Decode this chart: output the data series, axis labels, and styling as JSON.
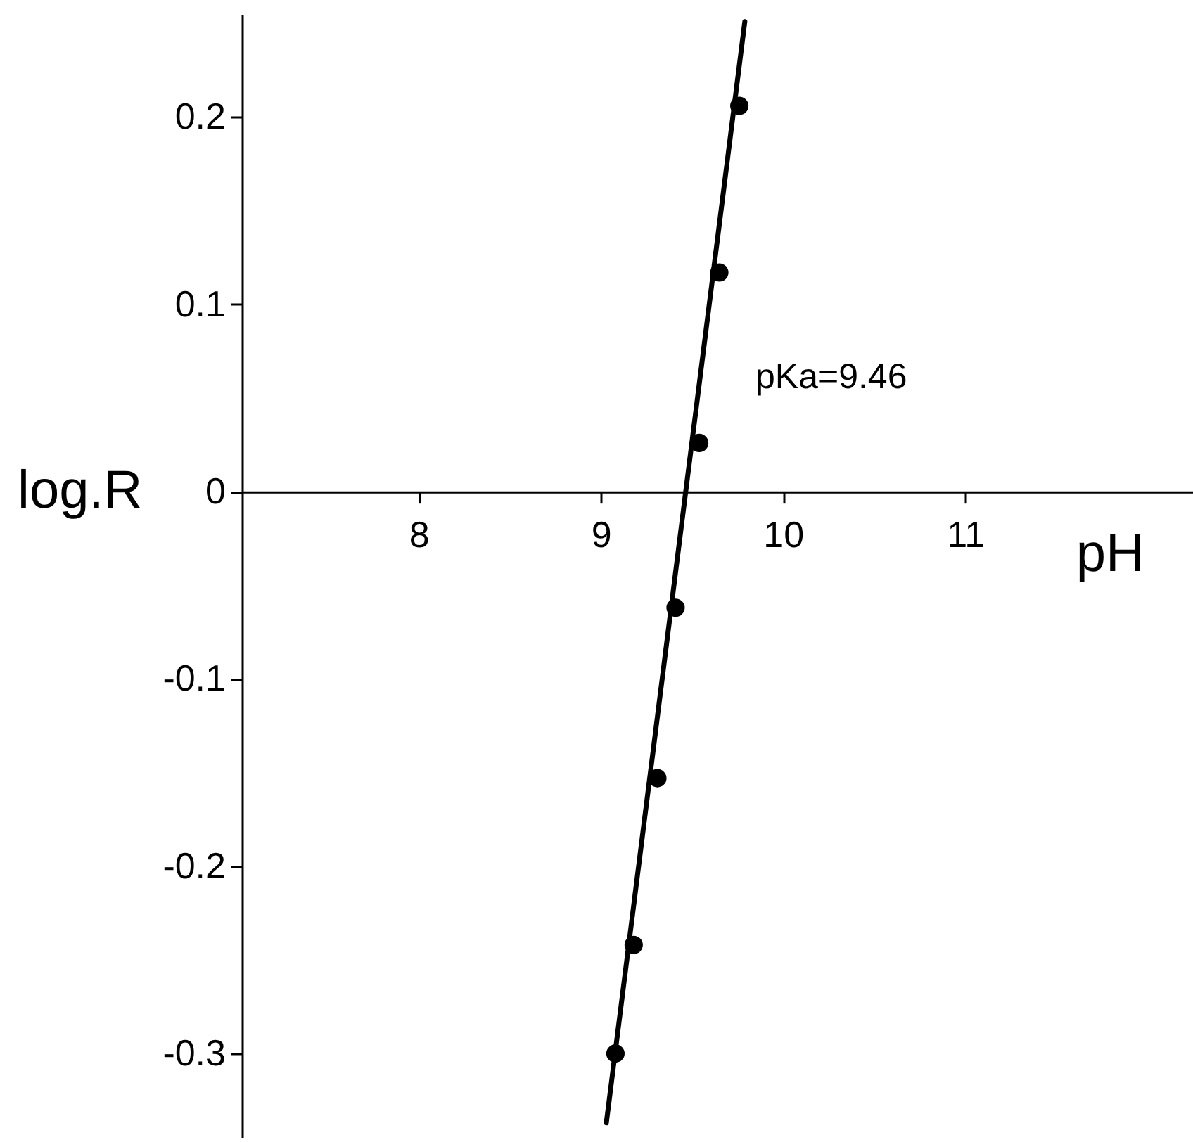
{
  "chart_data": {
    "type": "scatter",
    "xlabel": "pH",
    "ylabel": "log.R",
    "annotations": [
      "pKa=9.46"
    ],
    "xlim": [
      7.03,
      12.25
    ],
    "ylim": [
      -0.345,
      0.255
    ],
    "xticks": [
      8,
      9,
      10,
      11
    ],
    "yticks": [
      -0.3,
      -0.2,
      -0.1,
      0,
      0.1,
      0.2
    ],
    "marker": "circle",
    "series": [
      {
        "color": "#000000",
        "x": [
          9.76,
          9.65,
          9.54,
          9.41,
          9.31,
          9.18,
          9.08
        ],
        "values": [
          0.206,
          0.117,
          0.026,
          -0.062,
          -0.153,
          -0.242,
          -0.3
        ]
      },
      {
        "type": "line",
        "color": "#000000",
        "marker": "none",
        "line_style": "solid",
        "x": [
          9.03,
          9.79
        ],
        "values": [
          -0.337,
          0.251
        ]
      }
    ]
  }
}
